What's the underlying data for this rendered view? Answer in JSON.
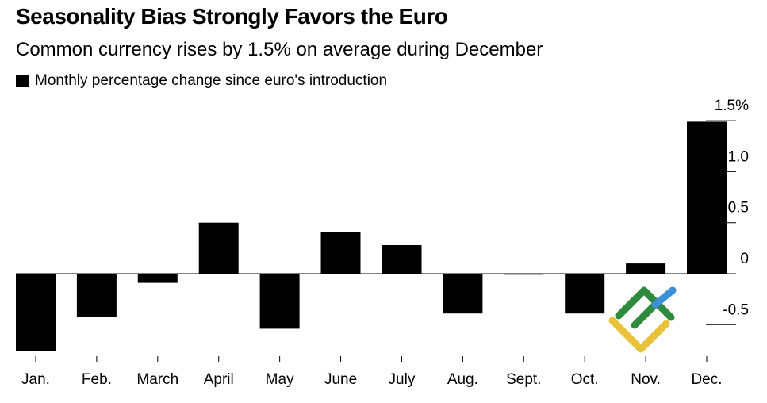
{
  "title": "Seasonality Bias Strongly Favors the Euro",
  "subtitle": "Common currency rises by 1.5% on average during December",
  "legend": {
    "label": "Monthly percentage change since euro's introduction",
    "color": "#000000"
  },
  "chart_data": {
    "type": "bar",
    "categories": [
      "Jan.",
      "Feb.",
      "March",
      "April",
      "May",
      "June",
      "July",
      "Aug.",
      "Sept.",
      "Oct.",
      "Nov.",
      "Dec."
    ],
    "series": [
      {
        "name": "Monthly percentage change since euro's introduction",
        "values": [
          -0.76,
          -0.42,
          -0.09,
          0.5,
          -0.54,
          0.41,
          0.28,
          -0.39,
          -0.01,
          -0.39,
          0.1,
          1.49
        ]
      }
    ],
    "y_ticks": [
      1.5,
      1.0,
      0.5,
      0,
      -0.5
    ],
    "y_tick_labels": [
      "1.5%",
      "1.0",
      "0.5",
      "0",
      "-0.5"
    ],
    "ylim": [
      -0.8,
      1.6
    ],
    "xlabel": "",
    "ylabel": "",
    "y_axis_position": "right",
    "grid": false,
    "legend_position": "top-left",
    "bar_color": "#000000"
  },
  "watermark": {
    "name": "logo-watermark",
    "colors": [
      "#2e8b3e",
      "#3a8fd6",
      "#e8c23a"
    ]
  }
}
